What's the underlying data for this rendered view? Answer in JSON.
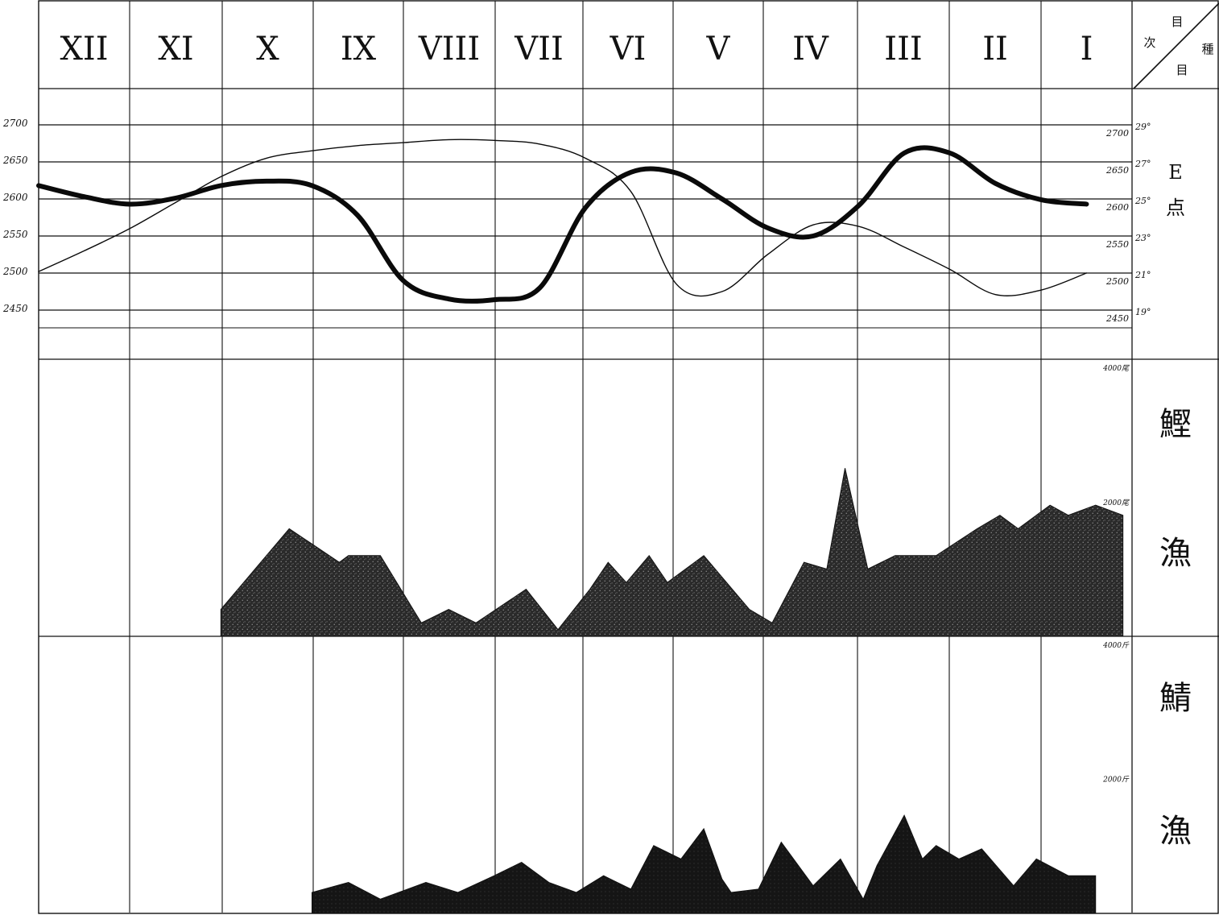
{
  "header": {
    "months": [
      "XII",
      "XI",
      "X",
      "IX",
      "VIII",
      "VII",
      "VI",
      "V",
      "IV",
      "III",
      "II",
      "I"
    ],
    "corner_top": "目",
    "corner_left": "次",
    "corner_right": "種",
    "corner_bottom": "目"
  },
  "row_labels": {
    "top": [
      "E",
      "点"
    ],
    "skipjack": [
      "鰹",
      "漁"
    ],
    "mackerel": [
      "鯖",
      "漁"
    ]
  },
  "chart_data": [
    {
      "type": "line",
      "xlabel": "",
      "ylabel": "",
      "left_axis": {
        "ticks": [
          "2700",
          "2650",
          "2600",
          "2550",
          "2500",
          "2450"
        ],
        "ylim": [
          2450,
          2700
        ]
      },
      "right_axis": {
        "inner_ticks": [
          "2700",
          "2650",
          "2600",
          "2550",
          "2500",
          "2450"
        ],
        "outer_ticks": [
          "29°",
          "27°",
          "25°",
          "23°",
          "21°",
          "19°"
        ],
        "outer_range": [
          19,
          29
        ]
      },
      "series": [
        {
          "style": "thick",
          "x": [
            0,
            0.5,
            1,
            1.5,
            2,
            2.5,
            3,
            3.5,
            4,
            4.5,
            5,
            5.5,
            6,
            6.5,
            7,
            7.5,
            8,
            8.5,
            9,
            9.5,
            10,
            10.5,
            11,
            11.5
          ],
          "values": [
            2618,
            2603,
            2593,
            2601,
            2618,
            2624,
            2618,
            2578,
            2490,
            2465,
            2464,
            2480,
            2588,
            2636,
            2635,
            2600,
            2561,
            2550,
            2591,
            2662,
            2662,
            2621,
            2599,
            2593
          ]
        },
        {
          "style": "thin",
          "x": [
            0,
            0.5,
            1,
            1.5,
            2,
            2.5,
            3,
            3.5,
            4,
            4.5,
            5,
            5.5,
            6,
            6.5,
            7,
            7.5,
            8,
            8.5,
            9,
            9.5,
            10,
            10.5,
            11,
            11.5
          ],
          "values": [
            2502,
            2530,
            2560,
            2595,
            2630,
            2655,
            2665,
            2672,
            2676,
            2680,
            2679,
            2674,
            2655,
            2610,
            2485,
            2475,
            2525,
            2565,
            2563,
            2535,
            2505,
            2471,
            2477,
            2500
          ]
        }
      ]
    },
    {
      "type": "area",
      "name": "鰹漁",
      "scale_ticks": [
        "4000尾",
        "2000尾"
      ],
      "ylim": [
        0,
        4000
      ],
      "x": [
        2,
        2.75,
        3.3,
        3.4,
        3.55,
        3.75,
        4.2,
        4.5,
        4.8,
        5.35,
        5.7,
        6.05,
        6.25,
        6.45,
        6.7,
        6.9,
        7.3,
        7.8,
        8.05,
        8.4,
        8.65,
        8.85,
        9.1,
        9.4,
        9.85,
        10.3,
        10.55,
        10.75,
        11.1,
        11.3,
        11.6,
        11.9
      ],
      "values": [
        400,
        1600,
        1100,
        1200,
        1200,
        1200,
        200,
        400,
        200,
        700,
        100,
        700,
        1100,
        800,
        1200,
        800,
        1200,
        400,
        200,
        1100,
        1000,
        2500,
        1000,
        1200,
        1200,
        1600,
        1800,
        1600,
        1950,
        1800,
        1950,
        1800
      ]
    },
    {
      "type": "area",
      "name": "鯖漁",
      "scale_ticks": [
        "4000斤",
        "2000斤"
      ],
      "ylim": [
        0,
        4000
      ],
      "x": [
        3,
        3.4,
        3.75,
        4.25,
        4.6,
        5.0,
        5.3,
        5.6,
        5.9,
        6.2,
        6.5,
        6.75,
        7.05,
        7.3,
        7.5,
        7.6,
        7.9,
        8.15,
        8.5,
        8.8,
        9.05,
        9.2,
        9.5,
        9.7,
        9.85,
        10.1,
        10.35,
        10.7,
        10.95,
        11.3,
        11.6
      ],
      "values": [
        300,
        450,
        200,
        450,
        300,
        550,
        750,
        450,
        300,
        550,
        350,
        1000,
        800,
        1250,
        500,
        300,
        350,
        1050,
        400,
        800,
        200,
        700,
        1450,
        800,
        1000,
        800,
        950,
        400,
        800,
        550,
        550
      ]
    }
  ]
}
